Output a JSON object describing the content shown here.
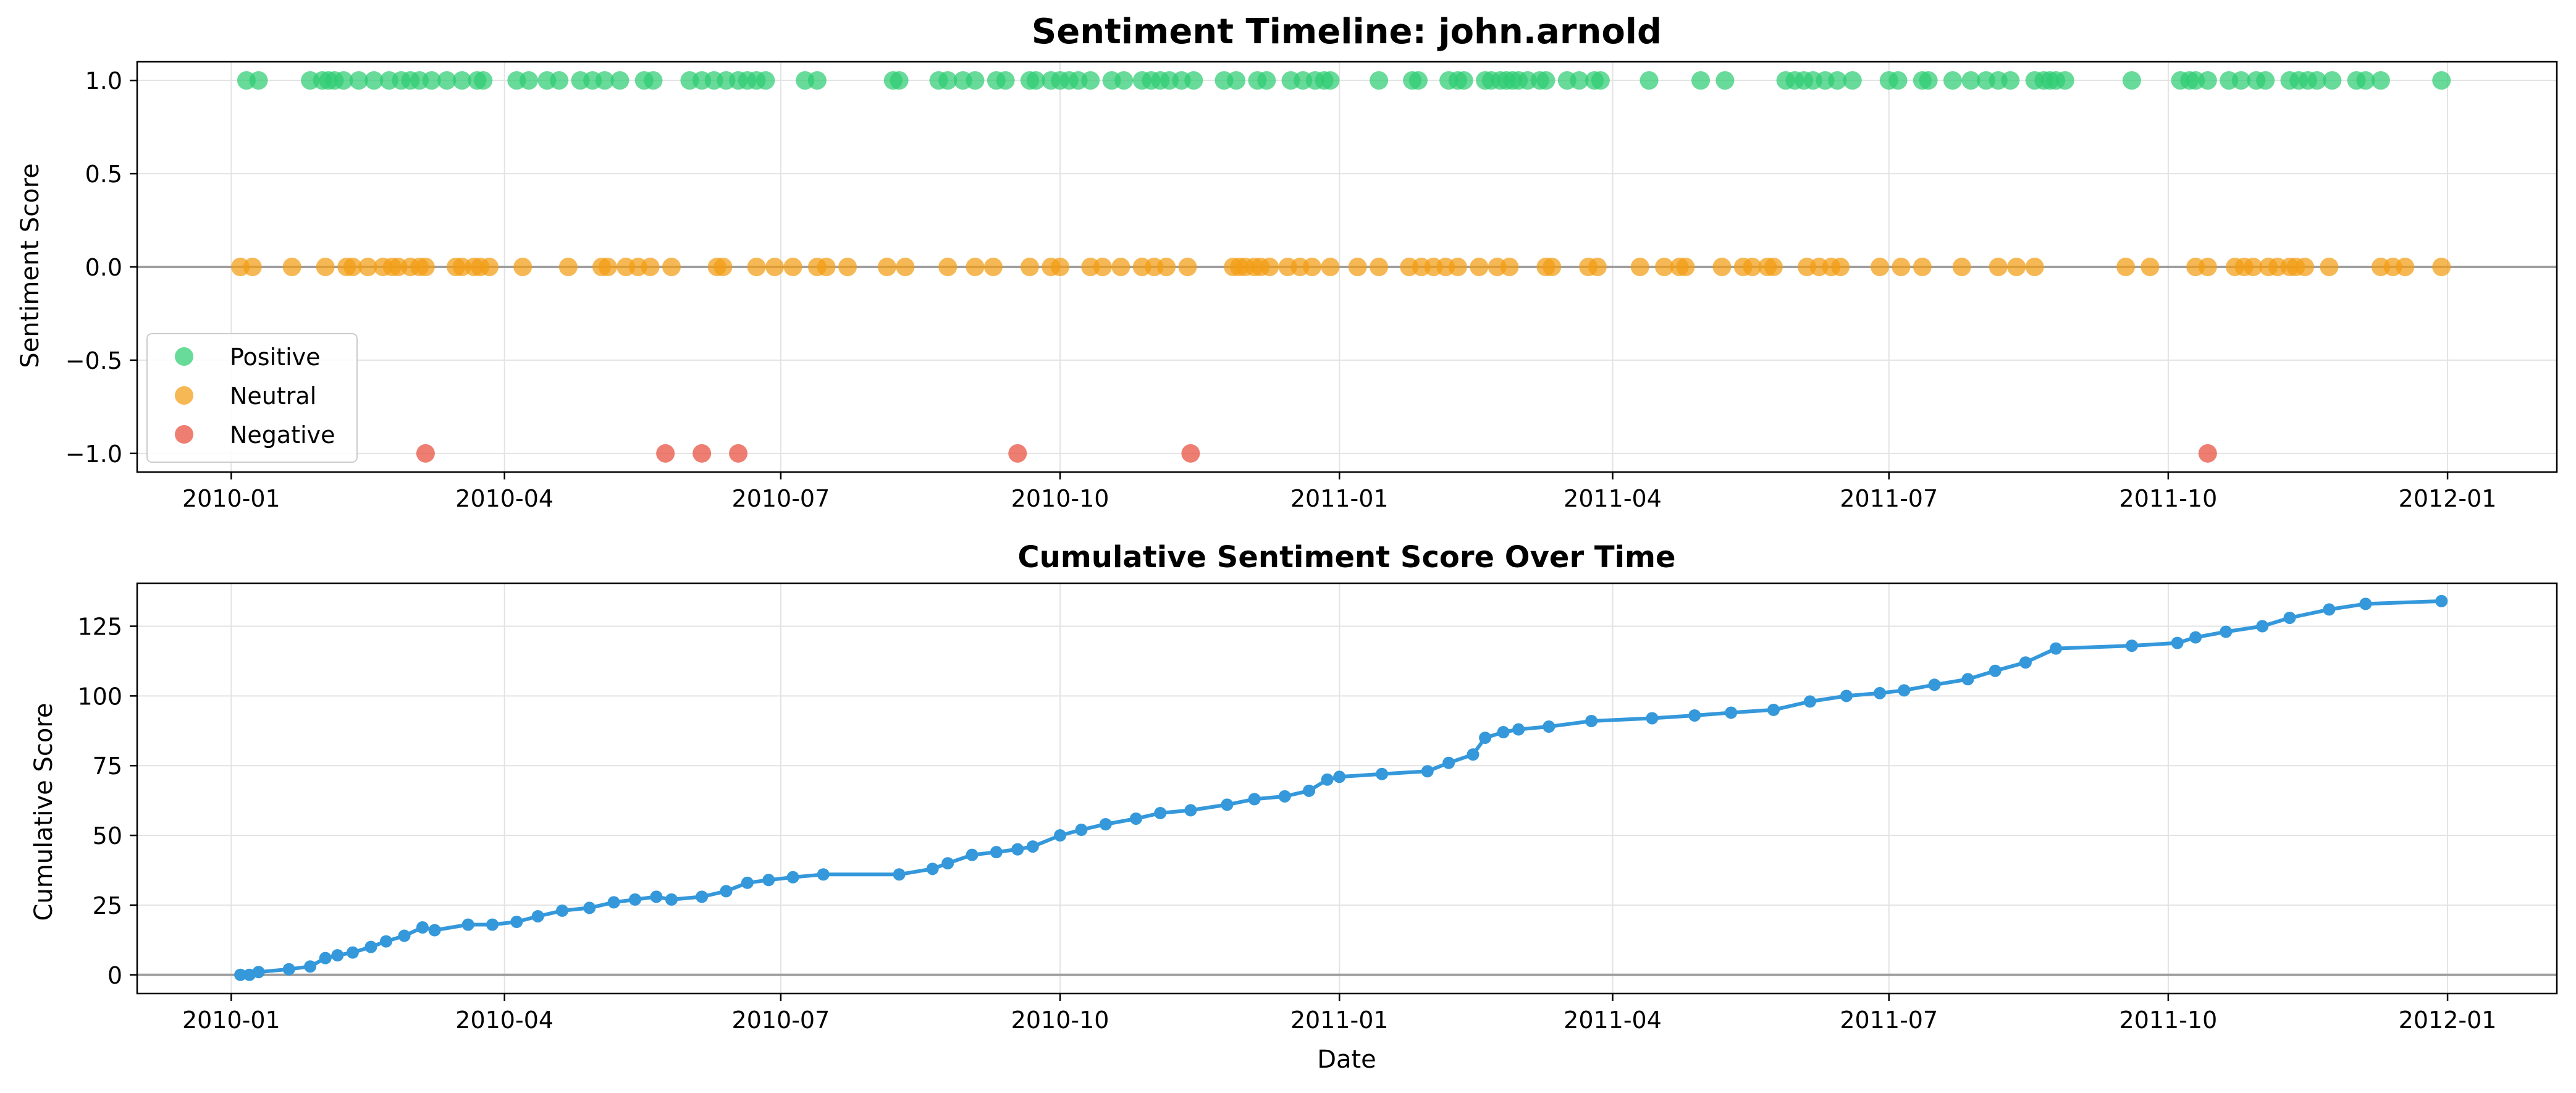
{
  "figure": {
    "background": "#ffffff"
  },
  "chart_data": [
    {
      "type": "scatter",
      "title": "Sentiment Timeline: john.arnold",
      "xlabel": "",
      "ylabel": "Sentiment Score",
      "xlim": [
        "2009-12-01",
        "2012-02-06"
      ],
      "ylim": [
        -1.1,
        1.1
      ],
      "x_ticks": [
        "2010-01-01",
        "2010-04-01",
        "2010-07-01",
        "2010-10-01",
        "2011-01-01",
        "2011-04-01",
        "2011-07-01",
        "2011-10-01",
        "2012-01-01"
      ],
      "x_tick_labels": [
        "2010-01",
        "2010-04",
        "2010-07",
        "2010-10",
        "2011-01",
        "2011-04",
        "2011-07",
        "2011-10",
        "2012-01"
      ],
      "y_ticks": [
        -1.0,
        -0.5,
        0.0,
        0.5,
        1.0
      ],
      "y_tick_labels": [
        "−1.0",
        "−0.5",
        "0.0",
        "0.5",
        "1.0"
      ],
      "grid": true,
      "reference_line": 0,
      "legend": "lower-left",
      "series": [
        {
          "name": "Positive",
          "y": 1,
          "color": "#2ecc71",
          "x": [
            "2010-01-06",
            "2010-01-10",
            "2010-01-27",
            "2010-01-31",
            "2010-02-02",
            "2010-02-04",
            "2010-02-07",
            "2010-02-12",
            "2010-02-17",
            "2010-02-22",
            "2010-02-26",
            "2010-03-01",
            "2010-03-04",
            "2010-03-08",
            "2010-03-13",
            "2010-03-18",
            "2010-03-23",
            "2010-03-25",
            "2010-04-05",
            "2010-04-09",
            "2010-04-15",
            "2010-04-19",
            "2010-04-26",
            "2010-04-30",
            "2010-05-04",
            "2010-05-09",
            "2010-05-17",
            "2010-05-20",
            "2010-06-01",
            "2010-06-05",
            "2010-06-09",
            "2010-06-13",
            "2010-06-17",
            "2010-06-20",
            "2010-06-23",
            "2010-06-26",
            "2010-07-09",
            "2010-07-13",
            "2010-08-07",
            "2010-08-09",
            "2010-08-22",
            "2010-08-25",
            "2010-08-30",
            "2010-09-03",
            "2010-09-10",
            "2010-09-13",
            "2010-09-21",
            "2010-09-23",
            "2010-09-28",
            "2010-10-01",
            "2010-10-04",
            "2010-10-07",
            "2010-10-11",
            "2010-10-18",
            "2010-10-22",
            "2010-10-28",
            "2010-10-31",
            "2010-11-03",
            "2010-11-06",
            "2010-11-10",
            "2010-11-14",
            "2010-11-24",
            "2010-11-28",
            "2010-12-05",
            "2010-12-08",
            "2010-12-16",
            "2010-12-20",
            "2010-12-24",
            "2010-12-27",
            "2010-12-29",
            "2011-01-14",
            "2011-01-25",
            "2011-01-27",
            "2011-02-06",
            "2011-02-09",
            "2011-02-11",
            "2011-02-18",
            "2011-02-20",
            "2011-02-23",
            "2011-02-25",
            "2011-02-27",
            "2011-03-01",
            "2011-03-04",
            "2011-03-08",
            "2011-03-10",
            "2011-03-17",
            "2011-03-21",
            "2011-03-26",
            "2011-03-28",
            "2011-04-13",
            "2011-04-30",
            "2011-05-08",
            "2011-05-28",
            "2011-05-31",
            "2011-06-03",
            "2011-06-06",
            "2011-06-10",
            "2011-06-14",
            "2011-06-19",
            "2011-07-01",
            "2011-07-04",
            "2011-07-12",
            "2011-07-14",
            "2011-07-22",
            "2011-07-28",
            "2011-08-02",
            "2011-08-06",
            "2011-08-10",
            "2011-08-18",
            "2011-08-21",
            "2011-08-23",
            "2011-08-25",
            "2011-08-28",
            "2011-09-19",
            "2011-10-05",
            "2011-10-08",
            "2011-10-10",
            "2011-10-14",
            "2011-10-21",
            "2011-10-25",
            "2011-10-30",
            "2011-11-02",
            "2011-11-10",
            "2011-11-13",
            "2011-11-16",
            "2011-11-19",
            "2011-11-24",
            "2011-12-02",
            "2011-12-05",
            "2011-12-10",
            "2011-12-30"
          ]
        },
        {
          "name": "Neutral",
          "y": 0,
          "color": "#f39c12",
          "x": [
            "2010-01-04",
            "2010-01-08",
            "2010-01-21",
            "2010-02-01",
            "2010-02-08",
            "2010-02-10",
            "2010-02-15",
            "2010-02-20",
            "2010-02-23",
            "2010-02-25",
            "2010-03-01",
            "2010-03-04",
            "2010-03-06",
            "2010-03-16",
            "2010-03-18",
            "2010-03-22",
            "2010-03-24",
            "2010-03-27",
            "2010-04-07",
            "2010-04-22",
            "2010-05-03",
            "2010-05-05",
            "2010-05-11",
            "2010-05-15",
            "2010-05-19",
            "2010-05-26",
            "2010-06-10",
            "2010-06-12",
            "2010-06-23",
            "2010-06-29",
            "2010-07-05",
            "2010-07-13",
            "2010-07-16",
            "2010-07-23",
            "2010-08-05",
            "2010-08-11",
            "2010-08-25",
            "2010-09-03",
            "2010-09-09",
            "2010-09-21",
            "2010-09-28",
            "2010-10-01",
            "2010-10-11",
            "2010-10-15",
            "2010-10-21",
            "2010-10-28",
            "2010-11-01",
            "2010-11-05",
            "2010-11-12",
            "2010-11-27",
            "2010-11-29",
            "2010-12-01",
            "2010-12-04",
            "2010-12-06",
            "2010-12-09",
            "2010-12-15",
            "2010-12-19",
            "2010-12-23",
            "2010-12-29",
            "2011-01-07",
            "2011-01-14",
            "2011-01-24",
            "2011-01-28",
            "2011-02-01",
            "2011-02-05",
            "2011-02-09",
            "2011-02-16",
            "2011-02-22",
            "2011-02-26",
            "2011-03-10",
            "2011-03-12",
            "2011-03-24",
            "2011-03-27",
            "2011-04-10",
            "2011-04-18",
            "2011-04-23",
            "2011-04-25",
            "2011-05-07",
            "2011-05-14",
            "2011-05-17",
            "2011-05-22",
            "2011-05-24",
            "2011-06-04",
            "2011-06-08",
            "2011-06-12",
            "2011-06-15",
            "2011-06-28",
            "2011-07-05",
            "2011-07-12",
            "2011-07-25",
            "2011-08-06",
            "2011-08-12",
            "2011-08-18",
            "2011-09-17",
            "2011-09-25",
            "2011-10-10",
            "2011-10-14",
            "2011-10-23",
            "2011-10-26",
            "2011-10-29",
            "2011-11-03",
            "2011-11-06",
            "2011-11-10",
            "2011-11-12",
            "2011-11-15",
            "2011-11-23",
            "2011-12-10",
            "2011-12-14",
            "2011-12-18",
            "2011-12-30"
          ]
        },
        {
          "name": "Negative",
          "y": -1,
          "color": "#e74c3c",
          "x": [
            "2010-03-06",
            "2010-05-24",
            "2010-06-05",
            "2010-06-17",
            "2010-09-17",
            "2010-11-13",
            "2011-10-14"
          ]
        }
      ]
    },
    {
      "type": "line",
      "title": "Cumulative Sentiment Score Over Time",
      "xlabel": "Date",
      "ylabel": "Cumulative Score",
      "xlim": [
        "2009-12-01",
        "2012-02-06"
      ],
      "ylim": [
        -6.7,
        140.4
      ],
      "x_ticks": [
        "2010-01-01",
        "2010-04-01",
        "2010-07-01",
        "2010-10-01",
        "2011-01-01",
        "2011-04-01",
        "2011-07-01",
        "2011-10-01",
        "2012-01-01"
      ],
      "x_tick_labels": [
        "2010-01",
        "2010-04",
        "2010-07",
        "2010-10",
        "2011-01",
        "2011-04",
        "2011-07",
        "2011-10",
        "2012-01"
      ],
      "y_ticks": [
        0,
        25,
        50,
        75,
        100,
        125
      ],
      "y_tick_labels": [
        "0",
        "25",
        "50",
        "75",
        "100",
        "125"
      ],
      "grid": true,
      "reference_line": 0,
      "series": [
        {
          "name": "",
          "color": "#3498db",
          "x": [
            "2010-01-04",
            "2010-01-07",
            "2010-01-10",
            "2010-01-20",
            "2010-01-27",
            "2010-02-01",
            "2010-02-05",
            "2010-02-10",
            "2010-02-16",
            "2010-02-21",
            "2010-02-27",
            "2010-03-05",
            "2010-03-09",
            "2010-03-20",
            "2010-03-28",
            "2010-04-05",
            "2010-04-12",
            "2010-04-20",
            "2010-04-29",
            "2010-05-07",
            "2010-05-14",
            "2010-05-21",
            "2010-05-26",
            "2010-06-05",
            "2010-06-13",
            "2010-06-20",
            "2010-06-27",
            "2010-07-05",
            "2010-07-15",
            "2010-08-09",
            "2010-08-20",
            "2010-08-25",
            "2010-09-02",
            "2010-09-10",
            "2010-09-17",
            "2010-09-22",
            "2010-10-01",
            "2010-10-08",
            "2010-10-16",
            "2010-10-26",
            "2010-11-03",
            "2010-11-13",
            "2010-11-25",
            "2010-12-04",
            "2010-12-14",
            "2010-12-22",
            "2010-12-28",
            "2011-01-01",
            "2011-01-15",
            "2011-01-30",
            "2011-02-06",
            "2011-02-14",
            "2011-02-18",
            "2011-02-24",
            "2011-03-01",
            "2011-03-11",
            "2011-03-25",
            "2011-04-14",
            "2011-04-28",
            "2011-05-10",
            "2011-05-24",
            "2011-06-05",
            "2011-06-17",
            "2011-06-28",
            "2011-07-06",
            "2011-07-16",
            "2011-07-27",
            "2011-08-05",
            "2011-08-15",
            "2011-08-25",
            "2011-09-19",
            "2011-10-04",
            "2011-10-10",
            "2011-10-20",
            "2011-11-01",
            "2011-11-10",
            "2011-11-23",
            "2011-12-05",
            "2011-12-30"
          ],
          "values": [
            0,
            0,
            1,
            2,
            3,
            6,
            7,
            8,
            10,
            12,
            14,
            17,
            16,
            18,
            18,
            19,
            21,
            23,
            24,
            26,
            27,
            28,
            27,
            28,
            30,
            33,
            34,
            35,
            36,
            36,
            38,
            40,
            43,
            44,
            45,
            46,
            50,
            52,
            54,
            56,
            58,
            59,
            61,
            63,
            64,
            66,
            70,
            71,
            72,
            73,
            76,
            79,
            85,
            87,
            88,
            89,
            91,
            92,
            93,
            94,
            95,
            98,
            100,
            101,
            102,
            104,
            106,
            109,
            112,
            117,
            118,
            119,
            121,
            123,
            125,
            128,
            131,
            133,
            134
          ]
        }
      ]
    }
  ]
}
